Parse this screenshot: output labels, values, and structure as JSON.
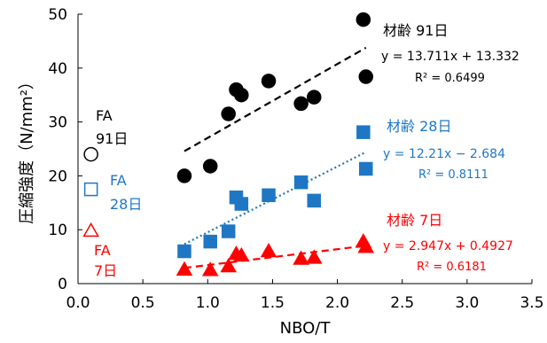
{
  "chart_data": {
    "type": "scatter",
    "xlabel": "NBO/T",
    "ylabel": "圧縮強度（N/mm²）",
    "xlim": [
      0,
      3.5
    ],
    "ylim": [
      0,
      50
    ],
    "x_ticks": [
      "0.0",
      "0.5",
      "1.0",
      "1.5",
      "2.0",
      "2.5",
      "3.0",
      "3.5"
    ],
    "y_ticks": [
      "0",
      "10",
      "20",
      "30",
      "40",
      "50"
    ],
    "grid": false,
    "series": [
      {
        "name": "材齢 91日",
        "marker": "circle",
        "color": "#000000",
        "points": [
          [
            0.82,
            20.0
          ],
          [
            1.02,
            21.8
          ],
          [
            1.16,
            31.5
          ],
          [
            1.22,
            36.0
          ],
          [
            1.26,
            35.0
          ],
          [
            1.47,
            37.6
          ],
          [
            1.72,
            33.4
          ],
          [
            1.82,
            34.6
          ],
          [
            2.2,
            49.0
          ],
          [
            2.22,
            38.4
          ]
        ],
        "trendline": {
          "slope": 13.711,
          "intercept": 13.332,
          "x_range": [
            0.82,
            2.22
          ],
          "style": "dashed"
        },
        "equation": "y = 13.711x + 13.332",
        "r2": "R² = 0.6499"
      },
      {
        "name": "材齢 28日",
        "marker": "square",
        "color": "#1f77c4",
        "points": [
          [
            0.82,
            6.0
          ],
          [
            1.02,
            7.8
          ],
          [
            1.16,
            9.7
          ],
          [
            1.22,
            16.0
          ],
          [
            1.26,
            14.8
          ],
          [
            1.47,
            16.4
          ],
          [
            1.72,
            18.8
          ],
          [
            1.82,
            15.4
          ],
          [
            2.2,
            28.1
          ],
          [
            2.22,
            21.3
          ]
        ],
        "trendline": {
          "slope": 12.21,
          "intercept": -2.684,
          "x_range": [
            0.82,
            2.22
          ],
          "style": "dotted"
        },
        "equation": "y = 12.21x − 2.684",
        "r2": "R² = 0.8111"
      },
      {
        "name": "材齢 7日",
        "marker": "triangle",
        "color": "#ff0000",
        "points": [
          [
            0.82,
            2.6
          ],
          [
            1.02,
            2.5
          ],
          [
            1.16,
            3.2
          ],
          [
            1.22,
            5.5
          ],
          [
            1.26,
            5.2
          ],
          [
            1.47,
            6.0
          ],
          [
            1.72,
            4.6
          ],
          [
            1.82,
            4.8
          ],
          [
            2.2,
            7.8
          ],
          [
            2.22,
            6.8
          ]
        ],
        "trendline": {
          "slope": 2.947,
          "intercept": 0.4927,
          "x_range": [
            0.82,
            2.22
          ],
          "style": "dashed"
        },
        "equation": "y = 2.947x + 0.4927",
        "r2": "R² = 0.6181"
      }
    ],
    "reference_points": [
      {
        "label_lines": [
          "FA",
          "91日"
        ],
        "x": 0.1,
        "y": 24.0,
        "marker": "circle",
        "color": "#000000"
      },
      {
        "label_lines": [
          "FA",
          "28日"
        ],
        "x": 0.1,
        "y": 17.5,
        "marker": "square",
        "color": "#1f77c4"
      },
      {
        "label_lines": [
          "FA",
          "7日"
        ],
        "x": 0.1,
        "y": 9.8,
        "marker": "triangle",
        "color": "#ff0000"
      }
    ]
  }
}
